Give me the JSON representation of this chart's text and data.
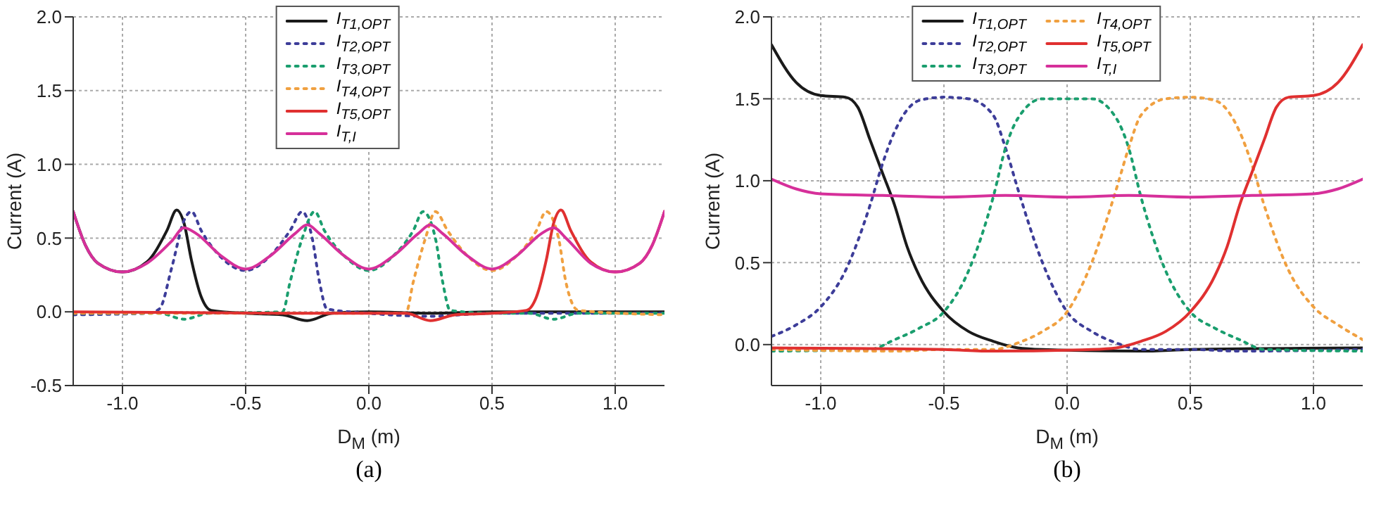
{
  "chart_data": [
    {
      "type": "line",
      "xlabel": "D$_{M}$ (m)",
      "ylabel": "Current (A)",
      "annotations": [
        "(a)"
      ],
      "grid": true,
      "legend": "top",
      "xlim": [
        -1.2,
        1.2
      ],
      "xticks": [
        {
          "value": -1,
          "label": "-1.0"
        },
        {
          "value": -0.5,
          "label": "-0.5"
        },
        {
          "value": 0,
          "label": "0.0"
        },
        {
          "value": 0.5,
          "label": "0.5"
        },
        {
          "value": 1,
          "label": "1.0"
        }
      ],
      "ylim": [
        -0.5,
        2
      ],
      "yticks": [
        {
          "value": -0.5,
          "label": "-0.5"
        },
        {
          "value": 0,
          "label": "0.0"
        },
        {
          "value": 0.5,
          "label": "0.5"
        },
        {
          "value": 1,
          "label": "1.0"
        },
        {
          "value": 1.5,
          "label": "1.5"
        },
        {
          "value": 2,
          "label": "2.0"
        }
      ],
      "series": [
        {
          "name": "I$_{T1,OPT}$",
          "color": "#1a1a1a",
          "line_style": "solid",
          "x": [
            -1.2,
            -1.15,
            -1.1,
            -1.0,
            -0.9,
            -0.82,
            -0.78,
            -0.75,
            -0.72,
            -0.68,
            -0.64,
            -0.5,
            -0.35,
            -0.25,
            -0.15,
            0,
            0.25,
            0.5,
            1.2
          ],
          "values": [
            0.68,
            0.45,
            0.33,
            0.27,
            0.34,
            0.55,
            0.69,
            0.6,
            0.35,
            0.1,
            0.01,
            -0.01,
            -0.02,
            -0.06,
            -0.01,
            0,
            -0.01,
            0,
            0
          ]
        },
        {
          "name": "I$_{T2,OPT}$",
          "color": "#3d3d99",
          "line_style": "dotted",
          "x": [
            -1.2,
            -0.9,
            -0.85,
            -0.8,
            -0.75,
            -0.72,
            -0.68,
            -0.6,
            -0.5,
            -0.4,
            -0.32,
            -0.27,
            -0.23,
            -0.2,
            -0.17,
            0,
            0.25,
            0.5,
            1.2
          ],
          "values": [
            -0.02,
            -0.01,
            0.02,
            0.3,
            0.62,
            0.68,
            0.55,
            0.37,
            0.28,
            0.38,
            0.55,
            0.68,
            0.5,
            0.2,
            0.02,
            -0.01,
            -0.03,
            -0.01,
            -0.01
          ]
        },
        {
          "name": "I$_{T3,OPT}$",
          "color": "#1a9e6e",
          "line_style": "dotted",
          "x": [
            -1.2,
            -0.85,
            -0.75,
            -0.65,
            -0.35,
            -0.32,
            -0.27,
            -0.22,
            -0.18,
            -0.1,
            0,
            0.1,
            0.18,
            0.22,
            0.27,
            0.3,
            0.33,
            0.5,
            0.65,
            0.75,
            0.85,
            1.2
          ],
          "values": [
            -0.01,
            -0.01,
            -0.05,
            -0.01,
            0,
            0.2,
            0.5,
            0.68,
            0.55,
            0.38,
            0.28,
            0.38,
            0.55,
            0.68,
            0.5,
            0.2,
            0.01,
            -0.01,
            -0.01,
            -0.05,
            -0.01,
            -0.01
          ]
        },
        {
          "name": "I$_{T4,OPT}$",
          "color": "#f0a040",
          "line_style": "dotted",
          "x": [
            -1.2,
            0.15,
            0.18,
            0.23,
            0.27,
            0.32,
            0.4,
            0.5,
            0.6,
            0.68,
            0.72,
            0.77,
            0.8,
            0.85,
            1.2
          ],
          "values": [
            -0.01,
            -0.01,
            0.2,
            0.5,
            0.68,
            0.55,
            0.38,
            0.28,
            0.38,
            0.55,
            0.68,
            0.5,
            0.2,
            0.01,
            -0.02
          ]
        },
        {
          "name": "I$_{T5,OPT}$",
          "color": "#e03030",
          "line_style": "solid",
          "x": [
            -1.2,
            -0.25,
            0.15,
            0.25,
            0.35,
            0.5,
            0.64,
            0.68,
            0.72,
            0.75,
            0.78,
            0.82,
            0.9,
            1.0,
            1.1,
            1.15,
            1.2
          ],
          "values": [
            0,
            -0.01,
            -0.01,
            -0.06,
            -0.02,
            -0.01,
            0.01,
            0.1,
            0.35,
            0.6,
            0.69,
            0.55,
            0.34,
            0.27,
            0.33,
            0.45,
            0.68
          ]
        },
        {
          "name": "I$_{T,I}$",
          "color": "#d6309a",
          "line_style": "solid",
          "x": [
            -1.2,
            -1.15,
            -1.1,
            -1.0,
            -0.9,
            -0.8,
            -0.75,
            -0.7,
            -0.6,
            -0.5,
            -0.4,
            -0.3,
            -0.25,
            -0.2,
            -0.1,
            0,
            0.1,
            0.2,
            0.25,
            0.3,
            0.4,
            0.5,
            0.6,
            0.7,
            0.75,
            0.8,
            0.9,
            1.0,
            1.1,
            1.15,
            1.2
          ],
          "values": [
            0.68,
            0.45,
            0.33,
            0.27,
            0.33,
            0.48,
            0.57,
            0.53,
            0.38,
            0.29,
            0.38,
            0.53,
            0.59,
            0.53,
            0.38,
            0.29,
            0.38,
            0.53,
            0.59,
            0.53,
            0.38,
            0.29,
            0.38,
            0.53,
            0.57,
            0.5,
            0.33,
            0.27,
            0.33,
            0.45,
            0.68
          ]
        }
      ]
    },
    {
      "type": "line",
      "xlabel": "D$_{M}$ (m)",
      "ylabel": "Current (A)",
      "annotations": [
        "(b)"
      ],
      "grid": true,
      "legend": "top",
      "xlim": [
        -1.2,
        1.2
      ],
      "xticks": [
        {
          "value": -1,
          "label": "-1.0"
        },
        {
          "value": -0.5,
          "label": "-0.5"
        },
        {
          "value": 0,
          "label": "0.0"
        },
        {
          "value": 0.5,
          "label": "0.5"
        },
        {
          "value": 1,
          "label": "1.0"
        }
      ],
      "ylim": [
        -0.25,
        2
      ],
      "yticks": [
        {
          "value": 0,
          "label": "0.0"
        },
        {
          "value": 0.5,
          "label": "0.5"
        },
        {
          "value": 1,
          "label": "1.0"
        },
        {
          "value": 1.5,
          "label": "1.5"
        },
        {
          "value": 2,
          "label": "2.0"
        }
      ],
      "series": [
        {
          "name": "I$_{T1,OPT}$",
          "color": "#1a1a1a",
          "line_style": "solid",
          "x": [
            -1.2,
            -1.1,
            -1.0,
            -0.9,
            -0.85,
            -0.8,
            -0.75,
            -0.7,
            -0.65,
            -0.6,
            -0.5,
            -0.4,
            -0.3,
            -0.2,
            -0.1,
            0.3,
            0.5,
            1.2
          ],
          "values": [
            1.83,
            1.6,
            1.52,
            1.51,
            1.45,
            1.25,
            1.05,
            0.85,
            0.6,
            0.42,
            0.2,
            0.08,
            0.02,
            -0.02,
            -0.03,
            -0.04,
            -0.03,
            -0.02
          ]
        },
        {
          "name": "I$_{T2,OPT}$",
          "color": "#3d3d99",
          "line_style": "dotted",
          "x": [
            -1.2,
            -1.1,
            -1.0,
            -0.9,
            -0.8,
            -0.75,
            -0.7,
            -0.6,
            -0.5,
            -0.4,
            -0.3,
            -0.25,
            -0.2,
            -0.1,
            0,
            0.1,
            0.2,
            0.3,
            0.5,
            0.7,
            1.2
          ],
          "values": [
            0.05,
            0.12,
            0.23,
            0.45,
            0.85,
            1.1,
            1.3,
            1.49,
            1.51,
            1.5,
            1.4,
            1.2,
            0.95,
            0.5,
            0.2,
            0.08,
            0.01,
            -0.03,
            -0.03,
            -0.04,
            -0.03
          ]
        },
        {
          "name": "I$_{T3,OPT}$",
          "color": "#1a9e6e",
          "line_style": "dotted",
          "x": [
            -1.2,
            -0.8,
            -0.7,
            -0.6,
            -0.5,
            -0.4,
            -0.3,
            -0.25,
            -0.2,
            -0.1,
            0,
            0.1,
            0.2,
            0.25,
            0.3,
            0.4,
            0.5,
            0.6,
            0.7,
            0.8,
            1.2
          ],
          "values": [
            -0.04,
            -0.03,
            0.03,
            0.1,
            0.2,
            0.45,
            0.9,
            1.2,
            1.38,
            1.5,
            1.5,
            1.5,
            1.38,
            1.2,
            0.9,
            0.45,
            0.2,
            0.1,
            0.03,
            -0.03,
            -0.04
          ]
        },
        {
          "name": "I$_{T4,OPT}$",
          "color": "#f0a040",
          "line_style": "dotted",
          "x": [
            -1.2,
            -0.7,
            -0.5,
            -0.3,
            -0.2,
            -0.1,
            0,
            0.1,
            0.2,
            0.25,
            0.3,
            0.4,
            0.5,
            0.6,
            0.7,
            0.75,
            0.8,
            0.9,
            1.0,
            1.1,
            1.2
          ],
          "values": [
            -0.03,
            -0.04,
            -0.03,
            -0.03,
            0.01,
            0.08,
            0.2,
            0.5,
            0.95,
            1.2,
            1.4,
            1.5,
            1.51,
            1.49,
            1.3,
            1.1,
            0.85,
            0.45,
            0.23,
            0.12,
            0.03
          ]
        },
        {
          "name": "I$_{T5,OPT}$",
          "color": "#e03030",
          "line_style": "solid",
          "x": [
            -1.2,
            -0.5,
            -0.3,
            0.1,
            0.2,
            0.3,
            0.4,
            0.5,
            0.6,
            0.65,
            0.7,
            0.75,
            0.8,
            0.85,
            0.9,
            1.0,
            1.1,
            1.2
          ],
          "values": [
            -0.02,
            -0.03,
            -0.04,
            -0.03,
            -0.02,
            0.02,
            0.08,
            0.2,
            0.42,
            0.6,
            0.85,
            1.05,
            1.25,
            1.45,
            1.51,
            1.52,
            1.6,
            1.83
          ]
        },
        {
          "name": "I$_{T,I}$",
          "color": "#d6309a",
          "line_style": "solid",
          "x": [
            -1.2,
            -1.1,
            -1.0,
            -0.75,
            -0.5,
            -0.25,
            0,
            0.25,
            0.5,
            0.75,
            1.0,
            1.1,
            1.2
          ],
          "values": [
            1.01,
            0.95,
            0.92,
            0.91,
            0.9,
            0.91,
            0.9,
            0.91,
            0.9,
            0.91,
            0.92,
            0.95,
            1.01
          ]
        }
      ]
    }
  ]
}
